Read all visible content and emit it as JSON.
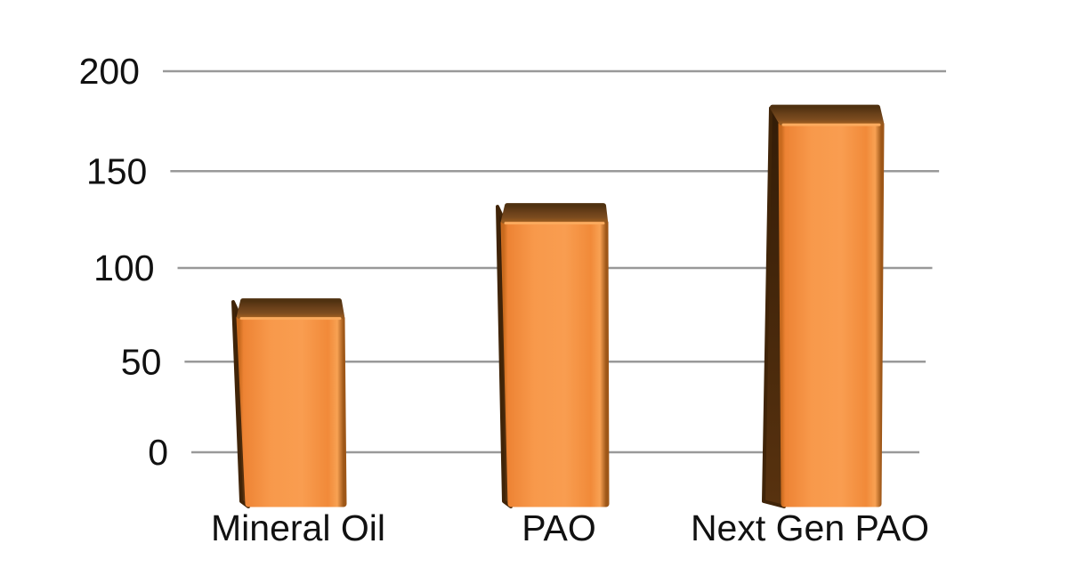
{
  "chart_data": {
    "type": "bar",
    "title": "",
    "xlabel": "",
    "ylabel": "",
    "categories": [
      "Mineral Oil",
      "PAO",
      "Next Gen PAO"
    ],
    "values": [
      75,
      125,
      175
    ],
    "ylim": [
      0,
      200
    ],
    "yticks": [
      200,
      150,
      100,
      50,
      0
    ],
    "grid": true,
    "legend": false,
    "style_3d": true,
    "colors": {
      "bar_front": "#F7964A",
      "bar_front_edge": "#CC6C1E",
      "bar_top": "#6B411A",
      "bar_side": "#3A2109",
      "bar_rim_highlight": "#FBAB5E",
      "gridline": "#999999",
      "text": "#111111",
      "background": "#FFFFFF"
    }
  }
}
